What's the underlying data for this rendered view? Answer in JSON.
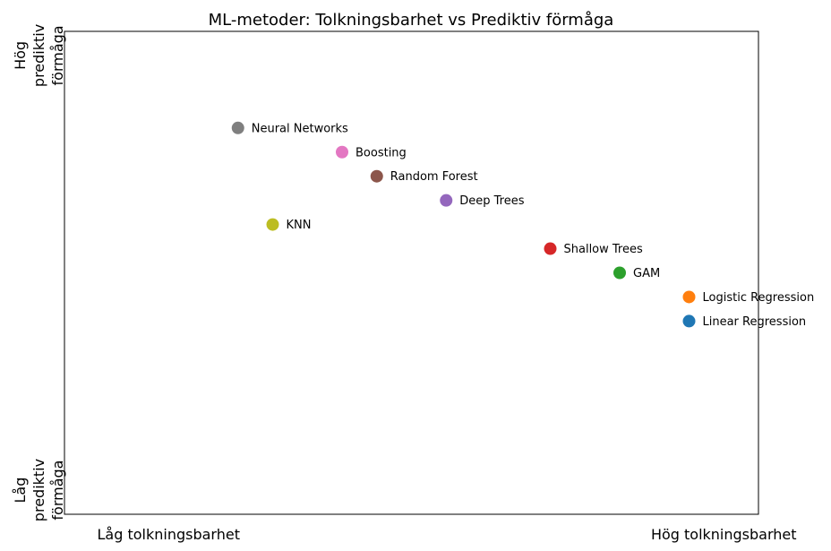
{
  "chart_data": {
    "type": "scatter",
    "title": "ML-metoder: Tolkningsbarhet vs Prediktiv förmåga",
    "xlabel": "",
    "ylabel": "",
    "xlim": [
      0,
      10
    ],
    "ylim": [
      0,
      10
    ],
    "grid": false,
    "legend": "none",
    "x_tick_labels": [
      {
        "x": 1.5,
        "label": "Låg tolkningsbarhet"
      },
      {
        "x": 9.5,
        "label": "Hög tolkningsbarhet"
      }
    ],
    "y_tick_labels": [
      {
        "y": 0.5,
        "lines": [
          "Låg",
          "prediktiv",
          "förmåga"
        ]
      },
      {
        "y": 9.5,
        "lines": [
          "Hög",
          "prediktiv",
          "förmåga"
        ]
      }
    ],
    "points": [
      {
        "label": "Linear Regression",
        "x": 9.0,
        "y": 4.0,
        "color": "#1f77b4"
      },
      {
        "label": "Logistic Regression",
        "x": 9.0,
        "y": 4.5,
        "color": "#ff7f0e"
      },
      {
        "label": "GAM",
        "x": 8.0,
        "y": 5.0,
        "color": "#2ca02c"
      },
      {
        "label": "Shallow Trees",
        "x": 7.0,
        "y": 5.5,
        "color": "#d62728"
      },
      {
        "label": "Deep Trees",
        "x": 5.5,
        "y": 6.5,
        "color": "#9467bd"
      },
      {
        "label": "Random Forest",
        "x": 4.5,
        "y": 7.0,
        "color": "#8c564b"
      },
      {
        "label": "Boosting",
        "x": 4.0,
        "y": 7.5,
        "color": "#e377c2"
      },
      {
        "label": "Neural Networks",
        "x": 2.5,
        "y": 8.0,
        "color": "#7f7f7f"
      },
      {
        "label": "KNN",
        "x": 3.0,
        "y": 6.0,
        "color": "#bcbd22"
      }
    ]
  }
}
